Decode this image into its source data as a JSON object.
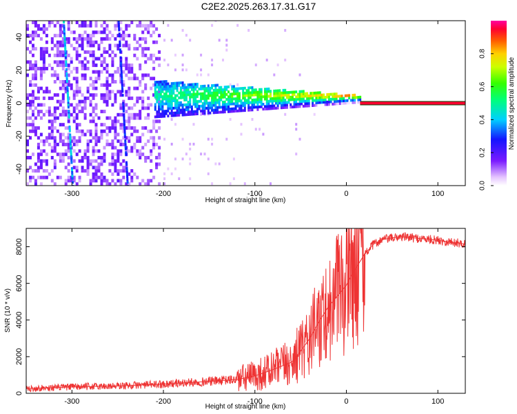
{
  "title": "C2E2.2025.263.17.31.G17",
  "chart_data": [
    {
      "type": "heatmap",
      "xlabel": "Height of straight line (km)",
      "ylabel": "Frequency (Hz)",
      "xlim": [
        -350,
        130
      ],
      "ylim": [
        -50,
        50
      ],
      "xticks": [
        -300,
        -200,
        -100,
        0,
        100
      ],
      "yticks": [
        -40,
        -20,
        0,
        20,
        40
      ],
      "colorbar": {
        "label": "Normalized spectral amplitude",
        "range": [
          0,
          1
        ],
        "ticks": [
          0.0,
          0.2,
          0.4,
          0.6,
          0.8
        ]
      },
      "features": {
        "central_band_height_range_km": [
          -210,
          15
        ],
        "central_band_frequency_hz": 2,
        "steady_tone_height_range_km": [
          15,
          130
        ],
        "steady_tone_frequency_hz": 0,
        "steady_tone_amplitude": 0.95,
        "diagonal_line_1_km_at_top_bottom": [
          -310,
          -300
        ],
        "diagonal_line_2_km_at_top_bottom": [
          -250,
          -240
        ]
      }
    },
    {
      "type": "line",
      "xlabel": "Height of straight line (km)",
      "ylabel": "SNR (10 * v/v)",
      "xlim": [
        -350,
        130
      ],
      "ylim": [
        0,
        9000
      ],
      "xticks": [
        -300,
        -200,
        -100,
        0,
        100
      ],
      "yticks": [
        0,
        2000,
        4000,
        6000,
        8000
      ],
      "color": "#ee3333",
      "series": [
        {
          "name": "SNR",
          "x": [
            -350,
            -300,
            -250,
            -200,
            -150,
            -120,
            -100,
            -80,
            -60,
            -50,
            -40,
            -30,
            -20,
            -10,
            -5,
            0,
            5,
            10,
            15,
            20,
            30,
            40,
            60,
            80,
            100,
            130
          ],
          "y": [
            250,
            350,
            400,
            500,
            650,
            750,
            950,
            1300,
            1700,
            2300,
            3000,
            3900,
            4700,
            5300,
            5600,
            5900,
            6400,
            6800,
            7200,
            7600,
            8150,
            8400,
            8550,
            8450,
            8350,
            8150
          ]
        }
      ]
    }
  ]
}
